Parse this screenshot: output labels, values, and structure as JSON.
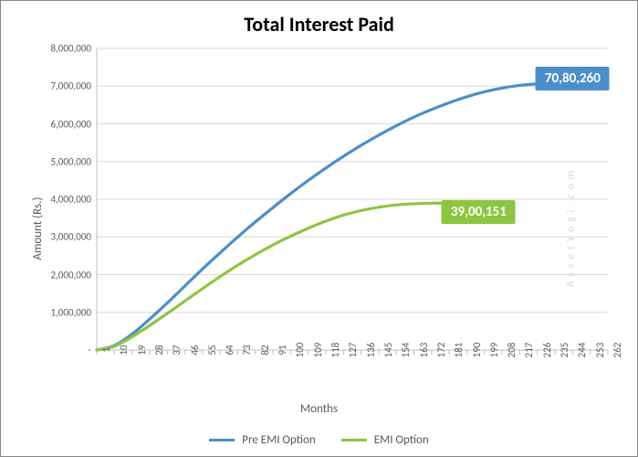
{
  "chart": {
    "type": "line",
    "title": "Total Interest Paid",
    "title_fontsize": 22,
    "ylabel": "Amount (Rs.)",
    "xlabel": "Months",
    "axis_label_fontsize": 13,
    "tick_fontsize": 11,
    "background_color": "#ffffff",
    "border_color": "#888888",
    "grid_color": "#d9d9d9",
    "axis_line_color": "#bfbfbf",
    "text_color": "#5a5a5a",
    "x_domain": [
      1,
      262
    ],
    "y_domain": [
      0,
      8000000
    ],
    "y_ticks": [
      {
        "v": 0,
        "label": "-"
      },
      {
        "v": 1000000,
        "label": "1,000,000"
      },
      {
        "v": 2000000,
        "label": "2,000,000"
      },
      {
        "v": 3000000,
        "label": "3,000,000"
      },
      {
        "v": 4000000,
        "label": "4,000,000"
      },
      {
        "v": 5000000,
        "label": "5,000,000"
      },
      {
        "v": 6000000,
        "label": "6,000,000"
      },
      {
        "v": 7000000,
        "label": "7,000,000"
      },
      {
        "v": 8000000,
        "label": "8,000,000"
      }
    ],
    "x_ticks": [
      1,
      10,
      19,
      28,
      37,
      46,
      55,
      64,
      73,
      82,
      91,
      100,
      109,
      118,
      127,
      136,
      145,
      154,
      163,
      172,
      181,
      190,
      199,
      208,
      217,
      226,
      235,
      244,
      253,
      262
    ],
    "series": [
      {
        "name": "Pre EMI Option",
        "color": "#4a8ecb",
        "line_width": 3.2,
        "data_label": {
          "text": "70,80,260",
          "x": 244,
          "y": 7200000,
          "bg": "#4a8ecb",
          "fontsize": 15
        },
        "points": [
          {
            "x": 1,
            "y": 0
          },
          {
            "x": 10,
            "y": 120000
          },
          {
            "x": 19,
            "y": 420000
          },
          {
            "x": 28,
            "y": 820000
          },
          {
            "x": 37,
            "y": 1250000
          },
          {
            "x": 46,
            "y": 1700000
          },
          {
            "x": 55,
            "y": 2150000
          },
          {
            "x": 64,
            "y": 2580000
          },
          {
            "x": 73,
            "y": 3000000
          },
          {
            "x": 82,
            "y": 3400000
          },
          {
            "x": 91,
            "y": 3780000
          },
          {
            "x": 100,
            "y": 4150000
          },
          {
            "x": 109,
            "y": 4500000
          },
          {
            "x": 118,
            "y": 4830000
          },
          {
            "x": 127,
            "y": 5140000
          },
          {
            "x": 136,
            "y": 5430000
          },
          {
            "x": 145,
            "y": 5700000
          },
          {
            "x": 154,
            "y": 5950000
          },
          {
            "x": 163,
            "y": 6180000
          },
          {
            "x": 172,
            "y": 6380000
          },
          {
            "x": 181,
            "y": 6560000
          },
          {
            "x": 190,
            "y": 6720000
          },
          {
            "x": 199,
            "y": 6850000
          },
          {
            "x": 208,
            "y": 6950000
          },
          {
            "x": 217,
            "y": 7020000
          },
          {
            "x": 226,
            "y": 7060000
          },
          {
            "x": 235,
            "y": 7075000
          },
          {
            "x": 244,
            "y": 7080000
          },
          {
            "x": 253,
            "y": 7080200
          },
          {
            "x": 262,
            "y": 7080260
          }
        ]
      },
      {
        "name": "EMI Option",
        "color": "#8cc63f",
        "line_width": 3.2,
        "data_label": {
          "text": "39,00,151",
          "x": 196,
          "y": 3650000,
          "bg": "#8cc63f",
          "fontsize": 15
        },
        "points": [
          {
            "x": 1,
            "y": 0
          },
          {
            "x": 10,
            "y": 100000
          },
          {
            "x": 19,
            "y": 350000
          },
          {
            "x": 28,
            "y": 650000
          },
          {
            "x": 37,
            "y": 970000
          },
          {
            "x": 46,
            "y": 1300000
          },
          {
            "x": 55,
            "y": 1630000
          },
          {
            "x": 64,
            "y": 1950000
          },
          {
            "x": 73,
            "y": 2250000
          },
          {
            "x": 82,
            "y": 2530000
          },
          {
            "x": 91,
            "y": 2790000
          },
          {
            "x": 100,
            "y": 3020000
          },
          {
            "x": 109,
            "y": 3230000
          },
          {
            "x": 118,
            "y": 3420000
          },
          {
            "x": 127,
            "y": 3580000
          },
          {
            "x": 136,
            "y": 3700000
          },
          {
            "x": 145,
            "y": 3790000
          },
          {
            "x": 154,
            "y": 3850000
          },
          {
            "x": 163,
            "y": 3880000
          },
          {
            "x": 172,
            "y": 3895000
          },
          {
            "x": 181,
            "y": 3900151
          }
        ]
      }
    ],
    "legend": [
      {
        "label": "Pre EMI Option",
        "color": "#4a8ecb"
      },
      {
        "label": "EMI Option",
        "color": "#8cc63f"
      }
    ],
    "watermark": "A s s e t Y o g i . c o m"
  }
}
